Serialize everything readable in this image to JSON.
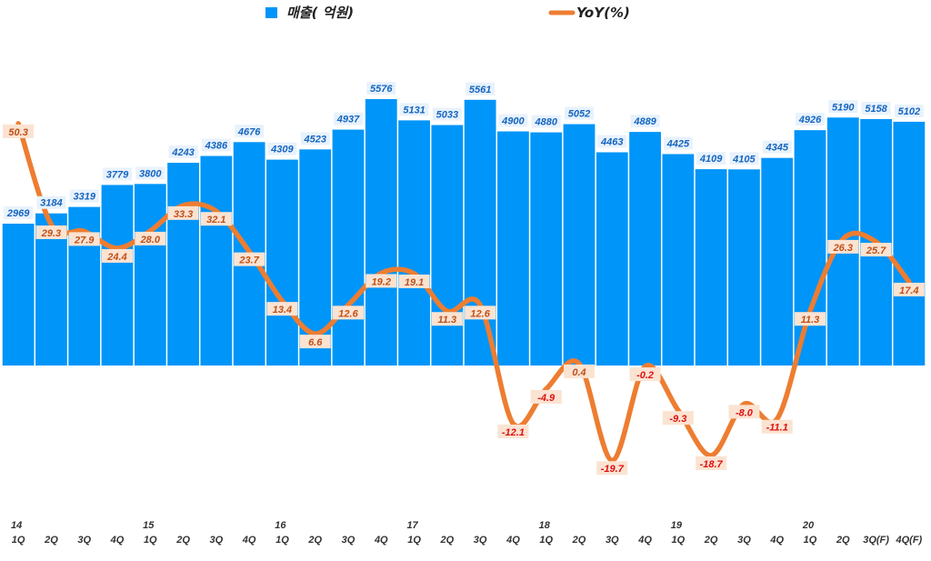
{
  "chart_data": {
    "type": "bar+line",
    "categories": [
      "14 1Q",
      "2Q",
      "3Q",
      "4Q",
      "15 1Q",
      "2Q",
      "3Q",
      "4Q",
      "16 1Q",
      "2Q",
      "3Q",
      "4Q",
      "17 1Q",
      "2Q",
      "3Q",
      "4Q",
      "18 1Q",
      "2Q",
      "3Q",
      "4Q",
      "19 1Q",
      "2Q",
      "3Q",
      "4Q",
      "20 1Q",
      "2Q",
      "3Q(F)",
      "4Q(F)"
    ],
    "tick_years": [
      "14",
      "",
      "",
      "",
      "15",
      "",
      "",
      "",
      "16",
      "",
      "",
      "",
      "17",
      "",
      "",
      "",
      "18",
      "",
      "",
      "",
      "19",
      "",
      "",
      "",
      "20",
      "",
      "",
      ""
    ],
    "tick_quarters": [
      "1Q",
      "2Q",
      "3Q",
      "4Q",
      "1Q",
      "2Q",
      "3Q",
      "4Q",
      "1Q",
      "2Q",
      "3Q",
      "4Q",
      "1Q",
      "2Q",
      "3Q",
      "4Q",
      "1Q",
      "2Q",
      "3Q",
      "4Q",
      "1Q",
      "2Q",
      "3Q",
      "4Q",
      "1Q",
      "2Q",
      "3Q(F)",
      "4Q(F)"
    ],
    "series": [
      {
        "name": "매출( 억원)",
        "type": "bar",
        "color": "#0095f8",
        "values": [
          2969,
          3184,
          3319,
          3779,
          3800,
          4243,
          4386,
          4676,
          4309,
          4523,
          4937,
          5576,
          5131,
          5033,
          5561,
          4900,
          4880,
          5052,
          4463,
          4889,
          4425,
          4109,
          4105,
          4345,
          4926,
          5190,
          5158,
          5102
        ]
      },
      {
        "name": "YoY(%)",
        "type": "line",
        "color": "#ed7d31",
        "values": [
          50.3,
          29.3,
          27.9,
          24.4,
          28.0,
          33.3,
          32.1,
          23.7,
          13.4,
          6.6,
          12.6,
          19.2,
          19.1,
          11.3,
          12.6,
          -12.1,
          -4.9,
          0.4,
          -19.7,
          -0.2,
          -9.3,
          -18.7,
          -8.0,
          -11.1,
          11.3,
          26.3,
          25.7,
          17.4
        ]
      }
    ],
    "legend_position": "top-center",
    "grid": false
  }
}
